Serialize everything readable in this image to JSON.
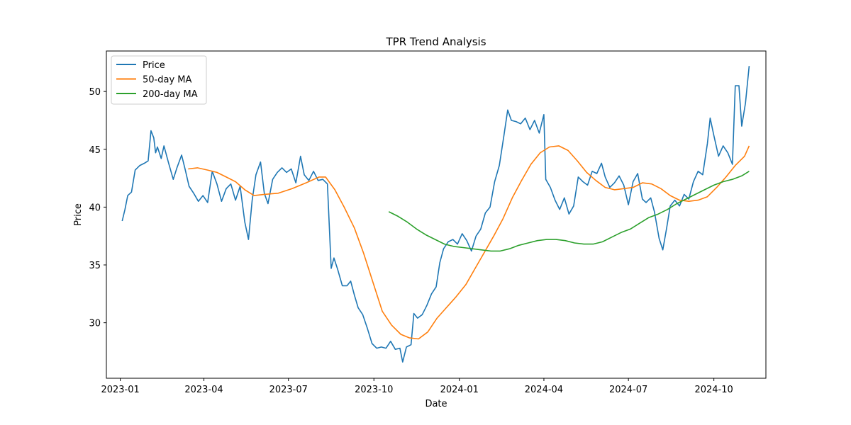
{
  "chart_data": {
    "type": "line",
    "title": "TPR Trend Analysis",
    "xlabel": "Date",
    "ylabel": "Price",
    "xlim": [
      "2022-12-17",
      "2024-11-26"
    ],
    "ylim": [
      25.2,
      53.5
    ],
    "x_ticks": [
      "2023-01",
      "2023-04",
      "2023-07",
      "2023-10",
      "2024-01",
      "2024-04",
      "2024-07",
      "2024-10"
    ],
    "y_ticks": [
      30,
      35,
      40,
      45,
      50
    ],
    "grid": false,
    "legend": "top-left",
    "series": [
      {
        "name": "Price",
        "color": "#1f77b4",
        "points": [
          [
            "2023-01-03",
            38.8
          ],
          [
            "2023-01-06",
            39.8
          ],
          [
            "2023-01-09",
            41.0
          ],
          [
            "2023-01-13",
            41.3
          ],
          [
            "2023-01-17",
            43.2
          ],
          [
            "2023-01-22",
            43.6
          ],
          [
            "2023-01-27",
            43.8
          ],
          [
            "2023-01-31",
            44.0
          ],
          [
            "2023-02-03",
            46.6
          ],
          [
            "2023-02-06",
            46.0
          ],
          [
            "2023-02-08",
            44.7
          ],
          [
            "2023-02-10",
            45.2
          ],
          [
            "2023-02-14",
            44.2
          ],
          [
            "2023-02-17",
            45.3
          ],
          [
            "2023-02-22",
            43.8
          ],
          [
            "2023-02-27",
            42.4
          ],
          [
            "2023-03-03",
            43.4
          ],
          [
            "2023-03-08",
            44.5
          ],
          [
            "2023-03-12",
            43.2
          ],
          [
            "2023-03-16",
            41.8
          ],
          [
            "2023-03-21",
            41.2
          ],
          [
            "2023-03-26",
            40.5
          ],
          [
            "2023-03-31",
            41.0
          ],
          [
            "2023-04-05",
            40.4
          ],
          [
            "2023-04-10",
            43.1
          ],
          [
            "2023-04-15",
            42.0
          ],
          [
            "2023-04-20",
            40.5
          ],
          [
            "2023-04-25",
            41.6
          ],
          [
            "2023-04-30",
            42.0
          ],
          [
            "2023-05-05",
            40.6
          ],
          [
            "2023-05-10",
            41.8
          ],
          [
            "2023-05-15",
            38.7
          ],
          [
            "2023-05-19",
            37.2
          ],
          [
            "2023-05-23",
            40.6
          ],
          [
            "2023-05-27",
            42.8
          ],
          [
            "2023-06-01",
            43.9
          ],
          [
            "2023-06-05",
            41.2
          ],
          [
            "2023-06-09",
            40.3
          ],
          [
            "2023-06-14",
            42.4
          ],
          [
            "2023-06-19",
            43.0
          ],
          [
            "2023-06-24",
            43.4
          ],
          [
            "2023-06-29",
            43.0
          ],
          [
            "2023-07-04",
            43.3
          ],
          [
            "2023-07-09",
            42.1
          ],
          [
            "2023-07-14",
            44.4
          ],
          [
            "2023-07-18",
            42.8
          ],
          [
            "2023-07-23",
            42.3
          ],
          [
            "2023-07-28",
            43.1
          ],
          [
            "2023-08-02",
            42.3
          ],
          [
            "2023-08-07",
            42.4
          ],
          [
            "2023-08-12",
            42.0
          ],
          [
            "2023-08-16",
            34.7
          ],
          [
            "2023-08-19",
            35.6
          ],
          [
            "2023-08-23",
            34.6
          ],
          [
            "2023-08-28",
            33.2
          ],
          [
            "2023-09-02",
            33.2
          ],
          [
            "2023-09-06",
            33.6
          ],
          [
            "2023-09-10",
            32.4
          ],
          [
            "2023-09-14",
            31.3
          ],
          [
            "2023-09-19",
            30.7
          ],
          [
            "2023-09-24",
            29.5
          ],
          [
            "2023-09-29",
            28.2
          ],
          [
            "2023-10-04",
            27.8
          ],
          [
            "2023-10-09",
            27.9
          ],
          [
            "2023-10-14",
            27.8
          ],
          [
            "2023-10-19",
            28.4
          ],
          [
            "2023-10-24",
            27.7
          ],
          [
            "2023-10-29",
            27.8
          ],
          [
            "2023-11-01",
            26.6
          ],
          [
            "2023-11-05",
            27.9
          ],
          [
            "2023-11-10",
            28.1
          ],
          [
            "2023-11-13",
            30.8
          ],
          [
            "2023-11-17",
            30.4
          ],
          [
            "2023-11-22",
            30.7
          ],
          [
            "2023-11-27",
            31.5
          ],
          [
            "2023-12-02",
            32.5
          ],
          [
            "2023-12-07",
            33.1
          ],
          [
            "2023-12-11",
            35.2
          ],
          [
            "2023-12-15",
            36.4
          ],
          [
            "2023-12-20",
            37.0
          ],
          [
            "2023-12-25",
            37.2
          ],
          [
            "2023-12-30",
            36.8
          ],
          [
            "2024-01-04",
            37.7
          ],
          [
            "2024-01-09",
            37.1
          ],
          [
            "2024-01-14",
            36.2
          ],
          [
            "2024-01-19",
            37.5
          ],
          [
            "2024-01-24",
            38.1
          ],
          [
            "2024-01-29",
            39.5
          ],
          [
            "2024-02-03",
            40.0
          ],
          [
            "2024-02-08",
            42.2
          ],
          [
            "2024-02-13",
            43.6
          ],
          [
            "2024-02-18",
            46.2
          ],
          [
            "2024-02-22",
            48.4
          ],
          [
            "2024-02-26",
            47.5
          ],
          [
            "2024-03-02",
            47.4
          ],
          [
            "2024-03-07",
            47.2
          ],
          [
            "2024-03-12",
            47.7
          ],
          [
            "2024-03-17",
            46.7
          ],
          [
            "2024-03-22",
            47.5
          ],
          [
            "2024-03-27",
            46.4
          ],
          [
            "2024-04-01",
            48.0
          ],
          [
            "2024-04-03",
            42.4
          ],
          [
            "2024-04-08",
            41.7
          ],
          [
            "2024-04-13",
            40.6
          ],
          [
            "2024-04-18",
            39.8
          ],
          [
            "2024-04-23",
            40.8
          ],
          [
            "2024-04-28",
            39.4
          ],
          [
            "2024-05-03",
            40.1
          ],
          [
            "2024-05-08",
            42.6
          ],
          [
            "2024-05-13",
            42.2
          ],
          [
            "2024-05-18",
            41.9
          ],
          [
            "2024-05-23",
            43.1
          ],
          [
            "2024-05-28",
            42.9
          ],
          [
            "2024-06-02",
            43.8
          ],
          [
            "2024-06-06",
            42.6
          ],
          [
            "2024-06-11",
            41.7
          ],
          [
            "2024-06-16",
            42.1
          ],
          [
            "2024-06-21",
            42.7
          ],
          [
            "2024-06-26",
            41.9
          ],
          [
            "2024-07-01",
            40.2
          ],
          [
            "2024-07-06",
            42.2
          ],
          [
            "2024-07-11",
            42.9
          ],
          [
            "2024-07-16",
            40.7
          ],
          [
            "2024-07-20",
            40.4
          ],
          [
            "2024-07-25",
            40.8
          ],
          [
            "2024-07-29",
            39.6
          ],
          [
            "2024-08-03",
            37.3
          ],
          [
            "2024-08-07",
            36.3
          ],
          [
            "2024-08-11",
            38.1
          ],
          [
            "2024-08-15",
            40.1
          ],
          [
            "2024-08-20",
            40.6
          ],
          [
            "2024-08-25",
            40.1
          ],
          [
            "2024-08-30",
            41.1
          ],
          [
            "2024-09-04",
            40.7
          ],
          [
            "2024-09-09",
            42.2
          ],
          [
            "2024-09-14",
            43.1
          ],
          [
            "2024-09-19",
            42.8
          ],
          [
            "2024-09-24",
            45.5
          ],
          [
            "2024-09-27",
            47.7
          ],
          [
            "2024-10-01",
            46.2
          ],
          [
            "2024-10-06",
            44.4
          ],
          [
            "2024-10-11",
            45.3
          ],
          [
            "2024-10-16",
            44.7
          ],
          [
            "2024-10-21",
            43.7
          ],
          [
            "2024-10-24",
            50.5
          ],
          [
            "2024-10-28",
            50.5
          ],
          [
            "2024-10-31",
            47.0
          ],
          [
            "2024-11-04",
            49.0
          ],
          [
            "2024-11-08",
            52.2
          ]
        ]
      },
      {
        "name": "50-day MA",
        "color": "#ff7f0e",
        "points": [
          [
            "2023-03-15",
            43.3
          ],
          [
            "2023-03-25",
            43.4
          ],
          [
            "2023-04-05",
            43.2
          ],
          [
            "2023-04-15",
            43.0
          ],
          [
            "2023-04-25",
            42.6
          ],
          [
            "2023-05-05",
            42.2
          ],
          [
            "2023-05-15",
            41.5
          ],
          [
            "2023-05-25",
            41.0
          ],
          [
            "2023-06-05",
            41.1
          ],
          [
            "2023-06-20",
            41.2
          ],
          [
            "2023-07-05",
            41.6
          ],
          [
            "2023-07-20",
            42.1
          ],
          [
            "2023-08-03",
            42.6
          ],
          [
            "2023-08-10",
            42.6
          ],
          [
            "2023-08-20",
            41.5
          ],
          [
            "2023-08-30",
            40.0
          ],
          [
            "2023-09-10",
            38.2
          ],
          [
            "2023-09-20",
            36.0
          ],
          [
            "2023-09-30",
            33.5
          ],
          [
            "2023-10-10",
            31.0
          ],
          [
            "2023-10-20",
            29.8
          ],
          [
            "2023-10-30",
            29.0
          ],
          [
            "2023-11-08",
            28.7
          ],
          [
            "2023-11-18",
            28.6
          ],
          [
            "2023-11-28",
            29.2
          ],
          [
            "2023-12-08",
            30.4
          ],
          [
            "2023-12-18",
            31.3
          ],
          [
            "2023-12-28",
            32.2
          ],
          [
            "2024-01-08",
            33.3
          ],
          [
            "2024-01-18",
            34.7
          ],
          [
            "2024-01-28",
            36.1
          ],
          [
            "2024-02-07",
            37.5
          ],
          [
            "2024-02-17",
            39.0
          ],
          [
            "2024-02-27",
            40.8
          ],
          [
            "2024-03-08",
            42.3
          ],
          [
            "2024-03-18",
            43.7
          ],
          [
            "2024-03-28",
            44.7
          ],
          [
            "2024-04-07",
            45.2
          ],
          [
            "2024-04-17",
            45.3
          ],
          [
            "2024-04-27",
            44.9
          ],
          [
            "2024-05-07",
            44.0
          ],
          [
            "2024-05-17",
            43.0
          ],
          [
            "2024-05-27",
            42.3
          ],
          [
            "2024-06-06",
            41.7
          ],
          [
            "2024-06-16",
            41.5
          ],
          [
            "2024-06-26",
            41.6
          ],
          [
            "2024-07-06",
            41.7
          ],
          [
            "2024-07-16",
            42.1
          ],
          [
            "2024-07-26",
            42.0
          ],
          [
            "2024-08-05",
            41.6
          ],
          [
            "2024-08-15",
            41.0
          ],
          [
            "2024-08-25",
            40.6
          ],
          [
            "2024-09-04",
            40.5
          ],
          [
            "2024-09-14",
            40.6
          ],
          [
            "2024-09-24",
            40.9
          ],
          [
            "2024-10-04",
            41.7
          ],
          [
            "2024-10-14",
            42.6
          ],
          [
            "2024-10-24",
            43.6
          ],
          [
            "2024-11-03",
            44.4
          ],
          [
            "2024-11-08",
            45.3
          ]
        ]
      },
      {
        "name": "200-day MA",
        "color": "#2ca02c",
        "points": [
          [
            "2023-10-17",
            39.6
          ],
          [
            "2023-10-27",
            39.2
          ],
          [
            "2023-11-06",
            38.7
          ],
          [
            "2023-11-16",
            38.1
          ],
          [
            "2023-11-26",
            37.6
          ],
          [
            "2023-12-06",
            37.2
          ],
          [
            "2023-12-16",
            36.8
          ],
          [
            "2023-12-26",
            36.6
          ],
          [
            "2024-01-05",
            36.5
          ],
          [
            "2024-01-15",
            36.4
          ],
          [
            "2024-01-25",
            36.3
          ],
          [
            "2024-02-04",
            36.2
          ],
          [
            "2024-02-14",
            36.2
          ],
          [
            "2024-02-24",
            36.4
          ],
          [
            "2024-03-05",
            36.7
          ],
          [
            "2024-03-15",
            36.9
          ],
          [
            "2024-03-25",
            37.1
          ],
          [
            "2024-04-04",
            37.2
          ],
          [
            "2024-04-14",
            37.2
          ],
          [
            "2024-04-24",
            37.1
          ],
          [
            "2024-05-04",
            36.9
          ],
          [
            "2024-05-14",
            36.8
          ],
          [
            "2024-05-24",
            36.8
          ],
          [
            "2024-06-03",
            37.0
          ],
          [
            "2024-06-13",
            37.4
          ],
          [
            "2024-06-23",
            37.8
          ],
          [
            "2024-07-03",
            38.1
          ],
          [
            "2024-07-13",
            38.6
          ],
          [
            "2024-07-23",
            39.1
          ],
          [
            "2024-08-02",
            39.4
          ],
          [
            "2024-08-12",
            39.8
          ],
          [
            "2024-08-22",
            40.3
          ],
          [
            "2024-09-01",
            40.7
          ],
          [
            "2024-09-11",
            41.1
          ],
          [
            "2024-09-21",
            41.5
          ],
          [
            "2024-10-01",
            41.9
          ],
          [
            "2024-10-11",
            42.2
          ],
          [
            "2024-10-21",
            42.4
          ],
          [
            "2024-10-31",
            42.7
          ],
          [
            "2024-11-08",
            43.1
          ]
        ]
      }
    ]
  }
}
